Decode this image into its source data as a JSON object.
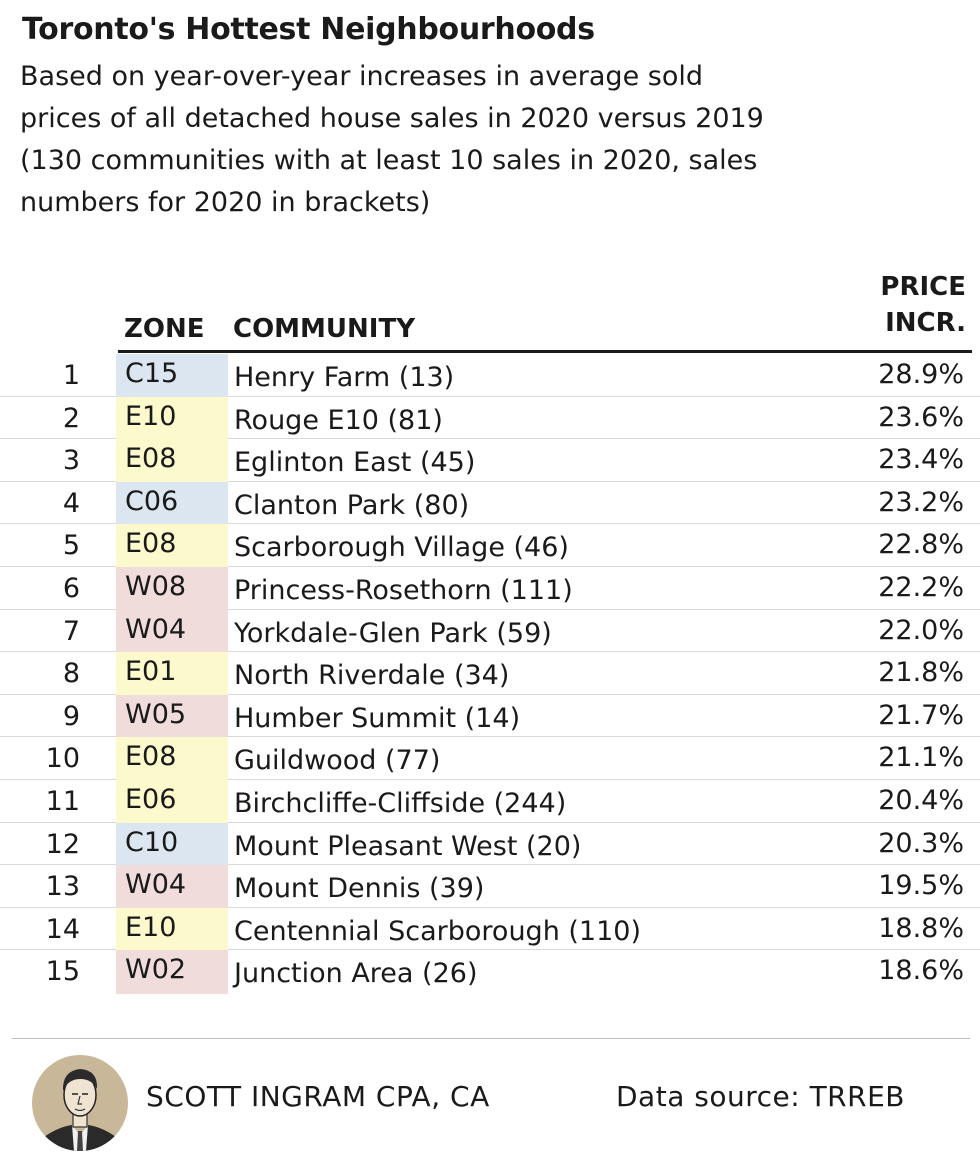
{
  "colors": {
    "C": "#dce6f1",
    "E": "#fcf9cc",
    "W": "#f1dcdc"
  },
  "chart_data": {
    "type": "table",
    "title": "Toronto's Hottest Neighbourhoods",
    "subtitle_lines": [
      "Based on year-over-year increases in average sold",
      "prices of all detached house sales in 2020 versus 2019",
      "(130 communities with at least 10 sales in 2020, sales",
      "numbers for 2020 in brackets)"
    ],
    "columns": {
      "zone": "ZONE",
      "community": "COMMUNITY",
      "price_line1": "PRICE",
      "price_line2": "INCR."
    },
    "rows": [
      {
        "rank": "1",
        "zone": "C15",
        "community": "Henry Farm (13)",
        "price_incr": "28.9%"
      },
      {
        "rank": "2",
        "zone": "E10",
        "community": "Rouge E10 (81)",
        "price_incr": "23.6%"
      },
      {
        "rank": "3",
        "zone": "E08",
        "community": "Eglinton East (45)",
        "price_incr": "23.4%"
      },
      {
        "rank": "4",
        "zone": "C06",
        "community": "Clanton Park (80)",
        "price_incr": "23.2%"
      },
      {
        "rank": "5",
        "zone": "E08",
        "community": "Scarborough Village (46)",
        "price_incr": "22.8%"
      },
      {
        "rank": "6",
        "zone": "W08",
        "community": "Princess-Rosethorn (111)",
        "price_incr": "22.2%"
      },
      {
        "rank": "7",
        "zone": "W04",
        "community": "Yorkdale-Glen Park (59)",
        "price_incr": "22.0%"
      },
      {
        "rank": "8",
        "zone": "E01",
        "community": "North Riverdale (34)",
        "price_incr": "21.8%"
      },
      {
        "rank": "9",
        "zone": "W05",
        "community": "Humber Summit (14)",
        "price_incr": "21.7%"
      },
      {
        "rank": "10",
        "zone": "E08",
        "community": "Guildwood (77)",
        "price_incr": "21.1%"
      },
      {
        "rank": "11",
        "zone": "E06",
        "community": "Birchcliffe-Cliffside (244)",
        "price_incr": "20.4%"
      },
      {
        "rank": "12",
        "zone": "C10",
        "community": "Mount Pleasant West (20)",
        "price_incr": "20.3%"
      },
      {
        "rank": "13",
        "zone": "W04",
        "community": "Mount Dennis (39)",
        "price_incr": "19.5%"
      },
      {
        "rank": "14",
        "zone": "E10",
        "community": "Centennial Scarborough (110)",
        "price_incr": "18.8%"
      },
      {
        "rank": "15",
        "zone": "W02",
        "community": "Junction Area (26)",
        "price_incr": "18.6%"
      }
    ]
  },
  "footer": {
    "author": "SCOTT INGRAM CPA, CA",
    "source": "Data source: TRREB",
    "avatar_icon": "author-portrait-icon"
  }
}
